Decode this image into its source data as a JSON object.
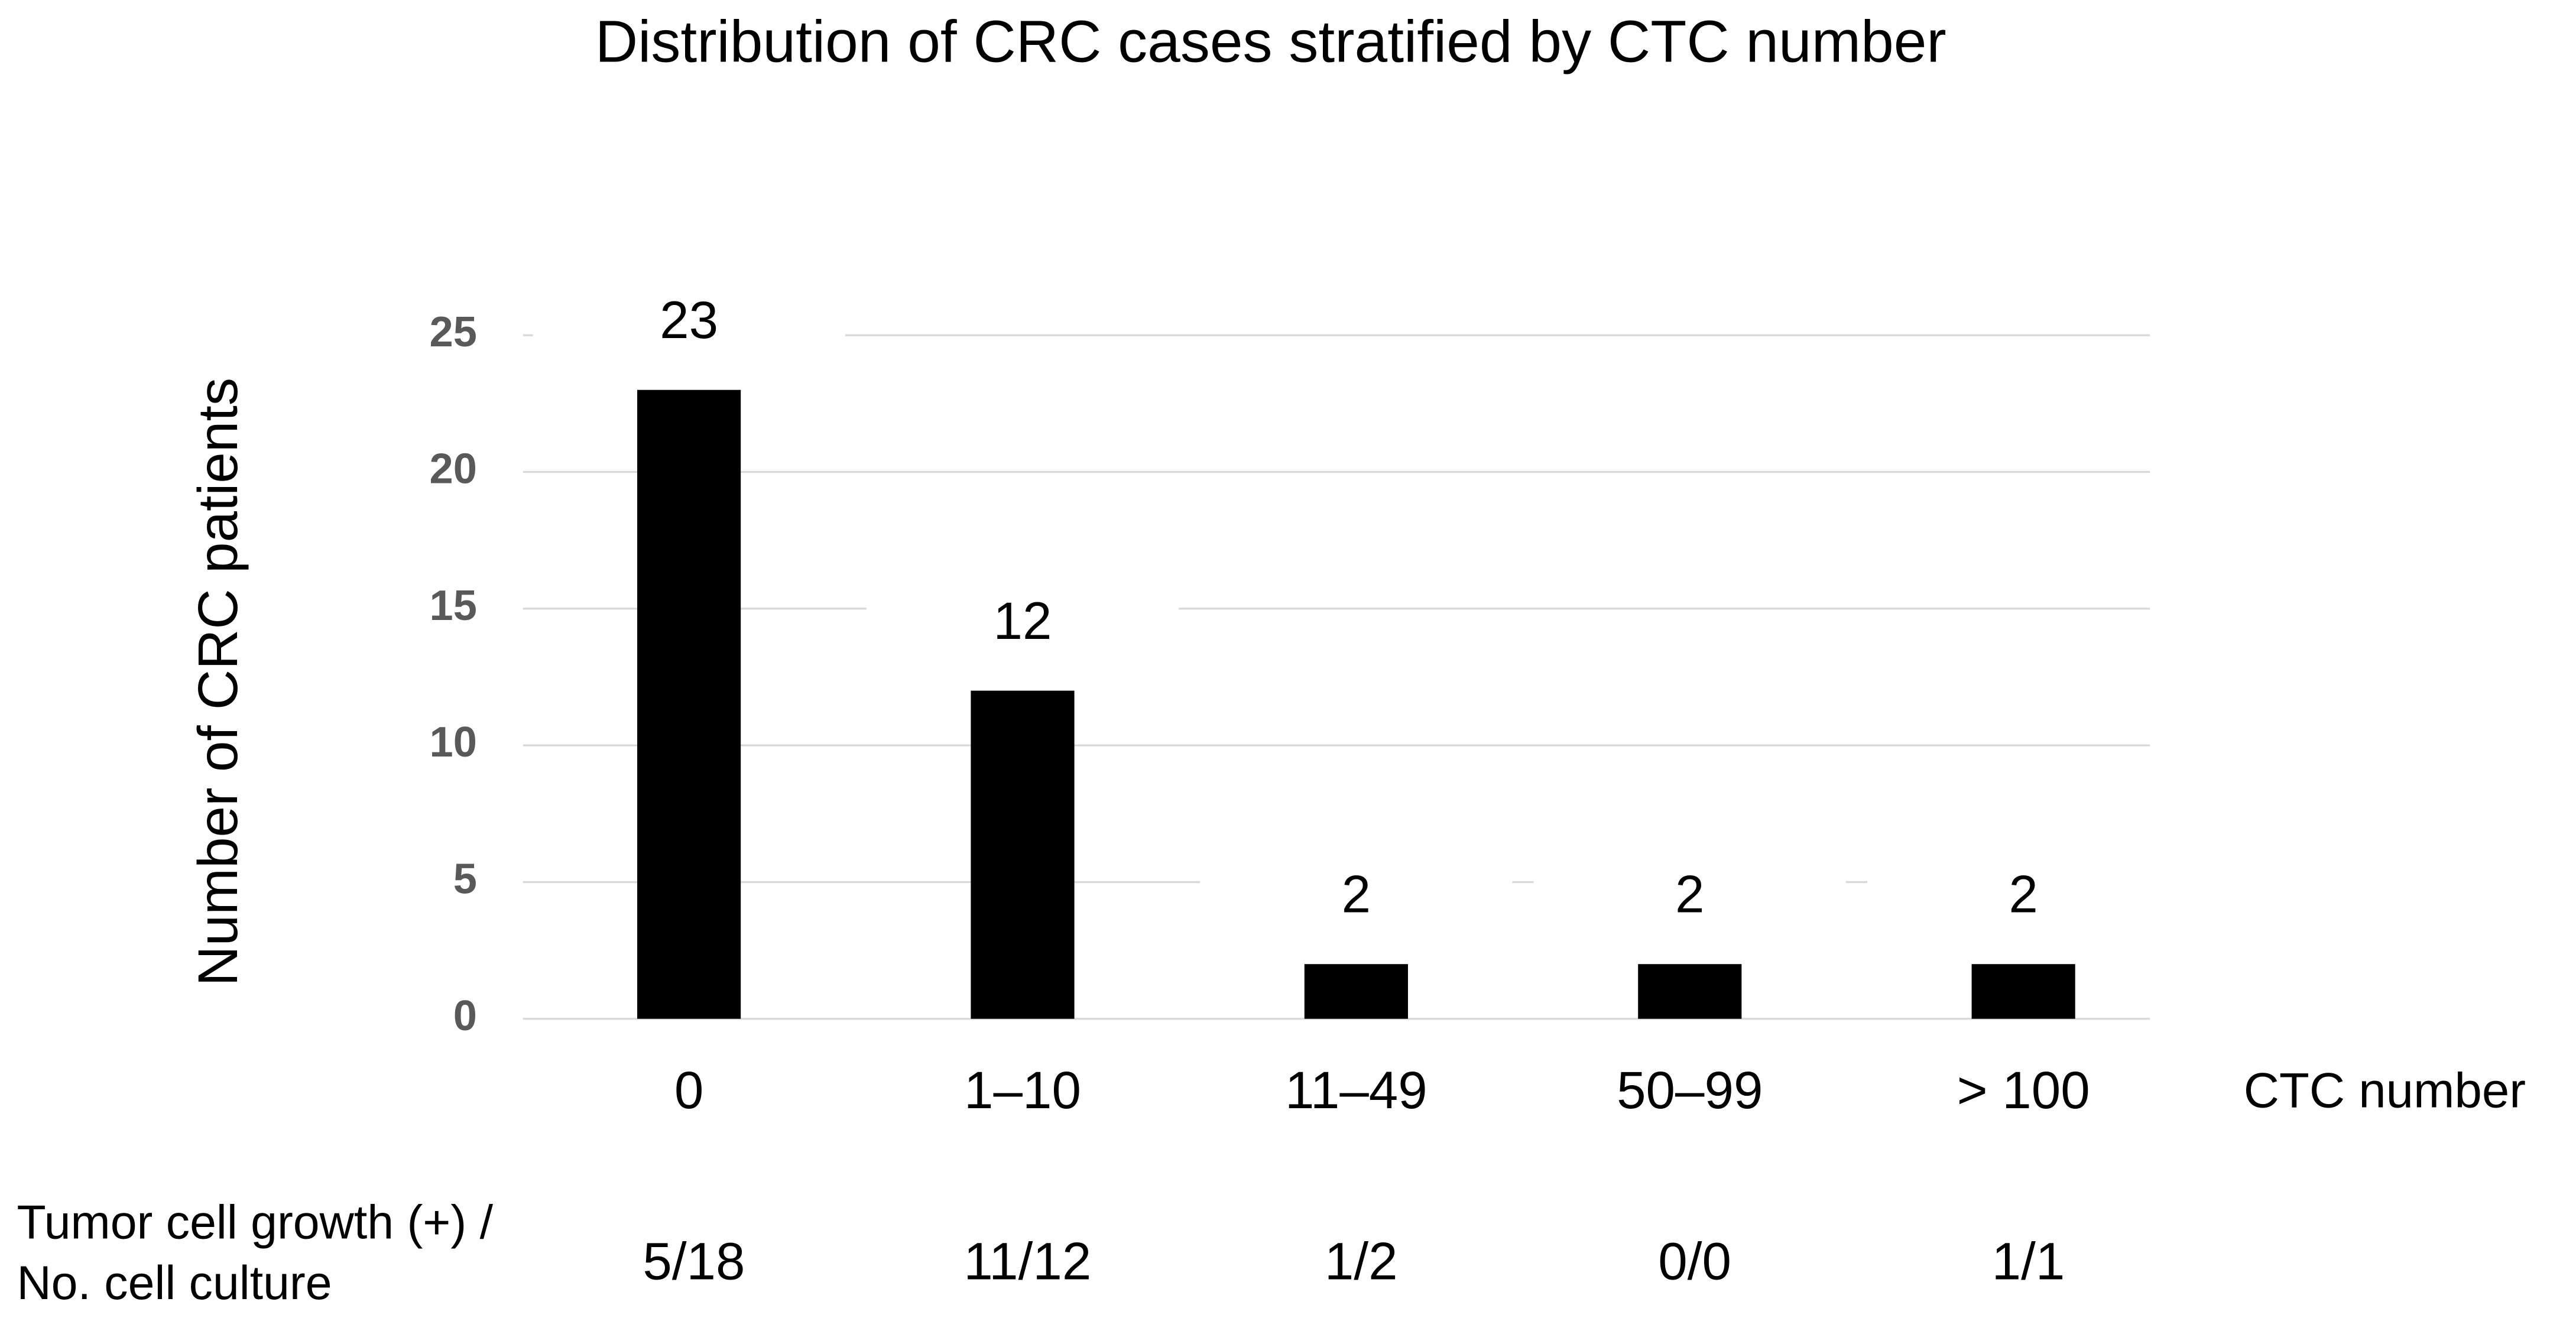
{
  "chart_data": {
    "type": "bar",
    "title": "Distribution of CRC cases stratified by CTC number",
    "y_label": "Number of CRC patients",
    "x_label": "CTC number",
    "categories": [
      "0",
      "1–10",
      "11–49",
      "50–99",
      "> 100"
    ],
    "values": [
      23,
      12,
      2,
      2,
      2
    ],
    "color": "#000000",
    "ylim": [
      0,
      25
    ],
    "yticks": [
      0,
      5,
      10,
      15,
      20,
      25
    ],
    "grid": true
  },
  "culture_table": {
    "label": [
      "Tumor cell growth (+) /",
      "No. cell culture"
    ],
    "values": [
      "5/18",
      "11/12",
      "1/2",
      "0/0",
      "1/1"
    ]
  }
}
